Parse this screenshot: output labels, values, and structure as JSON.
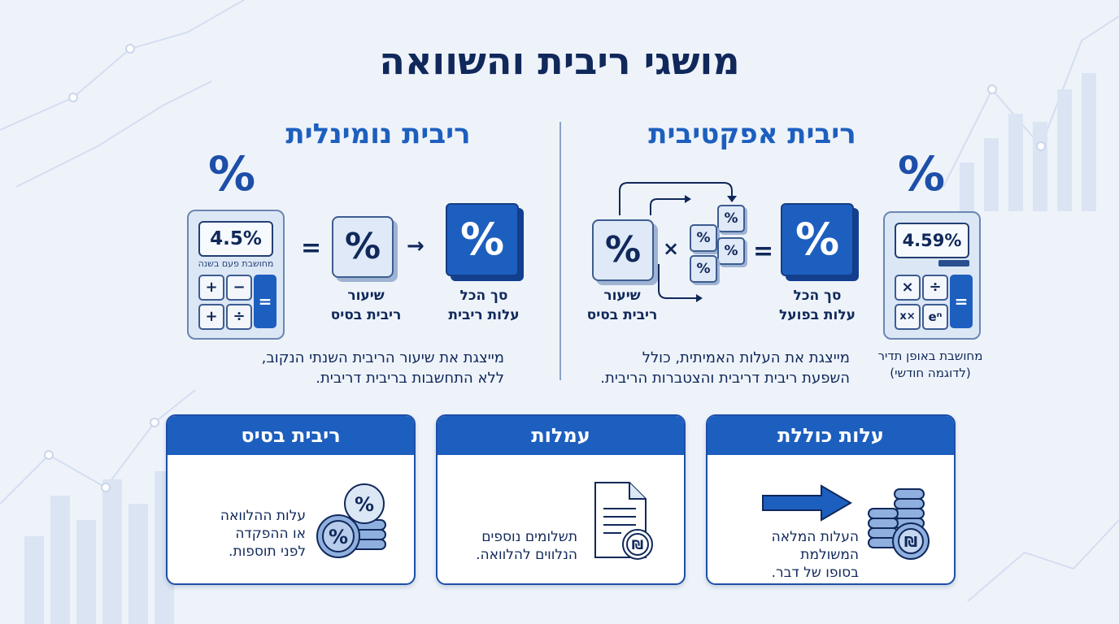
{
  "title": "מושגי ריבית והשוואה",
  "nominal": {
    "title": "ריבית נומינלית",
    "calc_display": "4.5%",
    "calc_note": "מחושבת פעם בשנה",
    "op_equals": "=",
    "op_arrow": "→",
    "base_cube": "%",
    "total_cube": "%",
    "base_label_1": "שיעור",
    "base_label_2": "ריבית בסיס",
    "total_label_1": "סך הכל",
    "total_label_2": "עלות ריבית",
    "desc_1": "מייצגת את שיעור הריבית השנתי הנקוב,",
    "desc_2": "ללא התחשבות בריבית דריבית."
  },
  "effective": {
    "title": "ריבית אפקטיבית",
    "calc_display": "4.59%",
    "calc_note_1": "מחושבת באופן תדיר",
    "calc_note_2": "(לדוגמה חודשי)",
    "op_equals": "=",
    "op_times": "×",
    "base_cube": "%",
    "total_cube": "%",
    "small_cube": "%",
    "base_label_1": "שיעור",
    "base_label_2": "ריבית בסיס",
    "total_label_1": "סך הכל",
    "total_label_2": "עלות בפועל",
    "desc_1": "מייצגת את העלות האמיתית, כולל",
    "desc_2": "השפעת ריבית דריבית והצטברות הריבית."
  },
  "big_percent": "%",
  "calc_keys_nominal": [
    "+",
    "−",
    "+",
    "÷"
  ],
  "calc_keys_effective": [
    "×",
    "÷",
    "x×",
    "eⁿ"
  ],
  "calc_key_equals": "=",
  "cards": [
    {
      "title": "עלות כוללת",
      "lines": [
        "העלות המלאה המשולמת",
        "בסופו של דבר."
      ],
      "icon": "arrow-coins-icon",
      "coin_symbol": "₪"
    },
    {
      "title": "עמלות",
      "lines": [
        "תשלומים נוספים",
        "הנלווים להלוואה."
      ],
      "icon": "document-shekel-icon",
      "coin_symbol": "₪"
    },
    {
      "title": "ריבית בסיס",
      "lines": [
        "עלות ההלוואה",
        "או ההפקדה",
        "לפני תוספות."
      ],
      "icon": "percent-coins-icon",
      "coin_symbol": "%"
    }
  ],
  "colors": {
    "primary": "#1d5fbf",
    "dark": "#10285a",
    "light": "#dce7f6",
    "background": "#eef3fa"
  }
}
